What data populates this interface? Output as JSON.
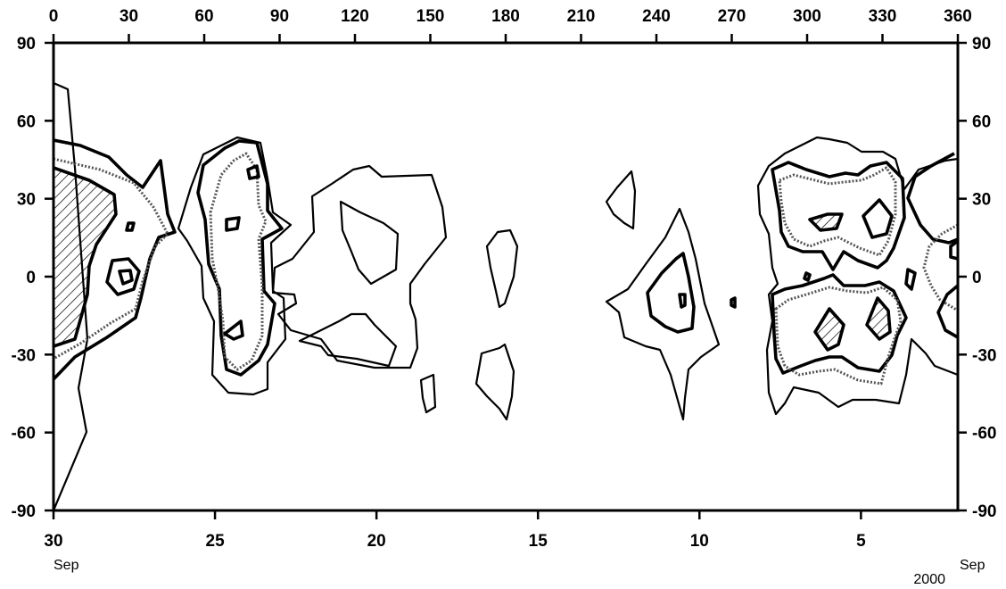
{
  "chart_data": {
    "type": "contour",
    "top_axis": {
      "ticks": [
        0,
        30,
        60,
        90,
        120,
        150,
        180,
        210,
        240,
        270,
        300,
        330,
        360
      ],
      "labels": [
        "0",
        "30",
        "60",
        "90",
        "120",
        "150",
        "180",
        "210",
        "240",
        "270",
        "300",
        "330",
        "360"
      ],
      "range": [
        0,
        360
      ]
    },
    "y_axis": {
      "ticks": [
        90,
        60,
        30,
        0,
        -30,
        -60,
        -90
      ],
      "labels": [
        "90",
        "60",
        "30",
        "0",
        "-30",
        "-60",
        "-90"
      ],
      "range": [
        -90,
        90
      ]
    },
    "bottom_axis": {
      "ticks": [
        30,
        25,
        20,
        15,
        10,
        5
      ],
      "labels": [
        "30",
        "25",
        "20",
        "15",
        "10",
        "5"
      ],
      "month_left": "Sep",
      "month_right": "Sep",
      "year": "2000"
    },
    "grid": false,
    "hatch_color": "#000000",
    "line_color": "#000000",
    "dotted_color": "#555555"
  }
}
